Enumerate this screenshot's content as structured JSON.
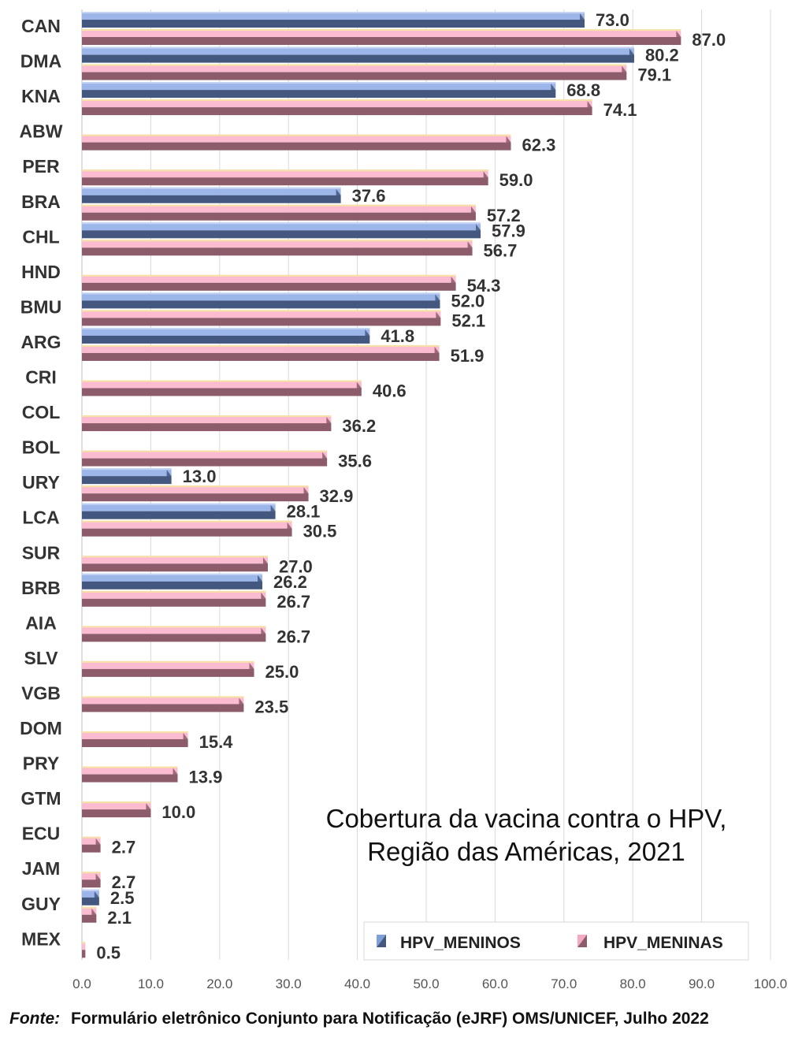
{
  "chart_data": {
    "type": "bar",
    "orientation": "horizontal",
    "categories": [
      "CAN",
      "DMA",
      "KNA",
      "ABW",
      "PER",
      "BRA",
      "CHL",
      "HND",
      "BMU",
      "ARG",
      "CRI",
      "COL",
      "BOL",
      "URY",
      "LCA",
      "SUR",
      "BRB",
      "AIA",
      "SLV",
      "VGB",
      "DOM",
      "PRY",
      "GTM",
      "ECU",
      "JAM",
      "GUY",
      "MEX"
    ],
    "series": [
      {
        "name": "HPV_MENINOS",
        "color": "#7f9fd8",
        "values": [
          73.0,
          80.2,
          68.8,
          null,
          null,
          37.6,
          57.9,
          null,
          52.0,
          41.8,
          null,
          null,
          null,
          13.0,
          28.1,
          null,
          26.2,
          null,
          null,
          null,
          null,
          null,
          null,
          null,
          null,
          2.5,
          null
        ]
      },
      {
        "name": "HPV_MENINAS",
        "color": "#f4a8c4",
        "values": [
          87.0,
          79.1,
          74.1,
          62.3,
          59.0,
          57.2,
          56.7,
          54.3,
          52.1,
          51.9,
          40.6,
          36.2,
          35.6,
          32.9,
          30.5,
          27.0,
          26.7,
          26.7,
          25.0,
          23.5,
          15.4,
          13.9,
          10.0,
          2.7,
          2.7,
          2.1,
          0.5
        ]
      }
    ],
    "x_ticks": [
      "0.0",
      "10.0",
      "20.0",
      "30.0",
      "40.0",
      "50.0",
      "60.0",
      "70.0",
      "80.0",
      "90.0",
      "100.0"
    ],
    "xlim": [
      0,
      100
    ],
    "grid": true,
    "legend_position": "bottom-right",
    "annotation": [
      "Cobertura da vacina contra o HPV,",
      "Região das Américas, 2021"
    ]
  },
  "source": {
    "label": "Fonte:",
    "text": "Formulário eletrônico Conjunto para Notificação (eJRF) OMS/UNICEF, Julho 2022"
  }
}
